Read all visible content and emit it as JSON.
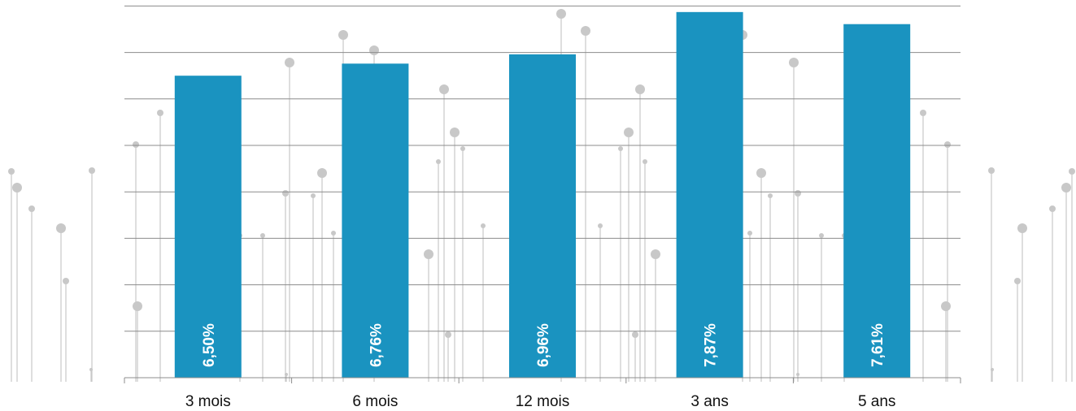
{
  "colors": {
    "bar": "#1a93c0",
    "grid": "#8c8c8c",
    "axis": "#8c8c8c",
    "decoration": "#c8c8c8",
    "data_label": "#ffffff",
    "tick_label": "#111111"
  },
  "chart_data": {
    "type": "bar",
    "title": "",
    "xlabel": "",
    "ylabel": "",
    "categories": [
      "3 mois",
      "6 mois",
      "12 mois",
      "3 ans",
      "5 ans"
    ],
    "values": [
      6.5,
      6.76,
      6.96,
      7.87,
      7.61
    ],
    "data_labels": [
      "6,50%",
      "6,76%",
      "6,96%",
      "7,87%",
      "7,61%"
    ],
    "ylim": [
      0,
      8
    ],
    "y_ticks": [
      0,
      1,
      2,
      3,
      4,
      5,
      6,
      7,
      8
    ],
    "y_tick_labels_shown": false,
    "grid": true,
    "legend": "none",
    "background_decoration": "lollipop-pins"
  }
}
